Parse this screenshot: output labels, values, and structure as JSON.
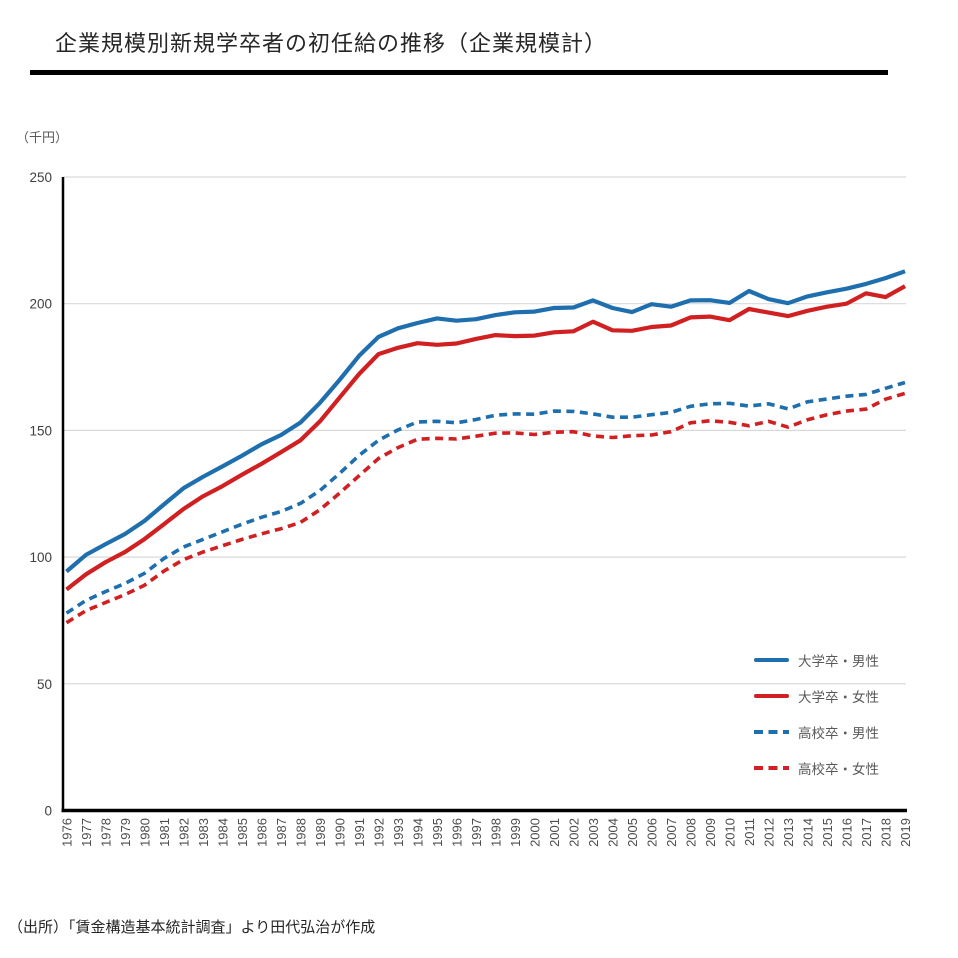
{
  "header": {
    "title": "企業規模別新規学卒者の初任給の推移（企業規模計）"
  },
  "footer": {
    "source": "（出所）「賃金構造基本統計調査」より田代弘治が作成"
  },
  "chart_data": {
    "type": "line",
    "title": "企業規模別新規学卒者の初任給の推移（企業規模計）",
    "unit_label": "（千円）",
    "xlabel": "",
    "ylabel": "（千円）",
    "ylim": [
      0,
      250
    ],
    "yticks": [
      0,
      50,
      100,
      150,
      200,
      250
    ],
    "grid": true,
    "grid_color": "#d9d9d9",
    "axis_color": "#000000",
    "legend_position": "inside-lower-right",
    "years": [
      1976,
      1977,
      1978,
      1979,
      1980,
      1981,
      1982,
      1983,
      1984,
      1985,
      1986,
      1987,
      1988,
      1989,
      1990,
      1991,
      1992,
      1993,
      1994,
      1995,
      1996,
      1997,
      1998,
      1999,
      2000,
      2001,
      2002,
      2003,
      2004,
      2005,
      2006,
      2007,
      2008,
      2009,
      2010,
      2011,
      2012,
      2013,
      2014,
      2015,
      2016,
      2017,
      2018,
      2019
    ],
    "series": [
      {
        "id": "univ-male",
        "label": "大学卒・男性",
        "color": "#1F6FAE",
        "dash": false,
        "values": [
          94.3,
          100.9,
          105.1,
          109.1,
          114.3,
          120.8,
          127.2,
          131.7,
          135.8,
          140.0,
          144.5,
          148.2,
          153.1,
          160.9,
          169.9,
          179.4,
          186.9,
          190.3,
          192.4,
          194.2,
          193.3,
          193.9,
          195.5,
          196.6,
          196.9,
          198.3,
          198.5,
          201.3,
          198.3,
          196.7,
          199.8,
          198.8,
          201.3,
          201.4,
          200.3,
          205.0,
          201.8,
          200.2,
          202.9,
          204.5,
          205.9,
          207.8,
          210.1,
          212.8
        ]
      },
      {
        "id": "univ-female",
        "label": "大学卒・女性",
        "color": "#D02021",
        "dash": false,
        "values": [
          87.2,
          93.2,
          98.0,
          102.0,
          107.1,
          113.0,
          119.0,
          124.0,
          128.0,
          132.5,
          136.8,
          141.4,
          146.1,
          153.6,
          162.9,
          172.2,
          180.1,
          182.6,
          184.4,
          183.8,
          184.3,
          186.1,
          187.6,
          187.2,
          187.4,
          188.7,
          189.1,
          192.9,
          189.5,
          189.3,
          190.8,
          191.4,
          194.6,
          194.9,
          193.5,
          197.9,
          196.5,
          195.1,
          197.2,
          198.8,
          200.0,
          204.1,
          202.6,
          206.9
        ]
      },
      {
        "id": "hs-male",
        "label": "高校卒・男性",
        "color": "#1F6FAE",
        "dash": true,
        "values": [
          77.9,
          82.9,
          86.4,
          89.6,
          93.6,
          99.5,
          104.0,
          107.0,
          110.0,
          113.0,
          115.7,
          118.0,
          121.2,
          126.3,
          133.0,
          140.1,
          146.1,
          150.2,
          153.3,
          153.6,
          153.0,
          154.3,
          156.0,
          156.5,
          156.4,
          157.6,
          157.5,
          156.5,
          155.2,
          155.2,
          156.2,
          157.1,
          159.5,
          160.5,
          160.7,
          159.6,
          160.5,
          158.5,
          161.3,
          162.4,
          163.5,
          164.2,
          166.6,
          168.9
        ]
      },
      {
        "id": "hs-female",
        "label": "高校卒・女性",
        "color": "#D02021",
        "dash": true,
        "values": [
          74.1,
          78.9,
          82.1,
          85.2,
          88.9,
          94.5,
          99.0,
          102.0,
          104.5,
          107.0,
          109.2,
          111.2,
          113.7,
          118.7,
          125.2,
          132.1,
          138.9,
          143.2,
          146.5,
          146.9,
          146.6,
          147.7,
          148.9,
          149.0,
          148.4,
          149.3,
          149.5,
          147.8,
          147.2,
          147.9,
          148.2,
          149.5,
          153.0,
          153.8,
          153.2,
          151.8,
          153.6,
          151.3,
          154.2,
          156.2,
          157.6,
          158.4,
          162.3,
          164.6
        ]
      }
    ]
  }
}
